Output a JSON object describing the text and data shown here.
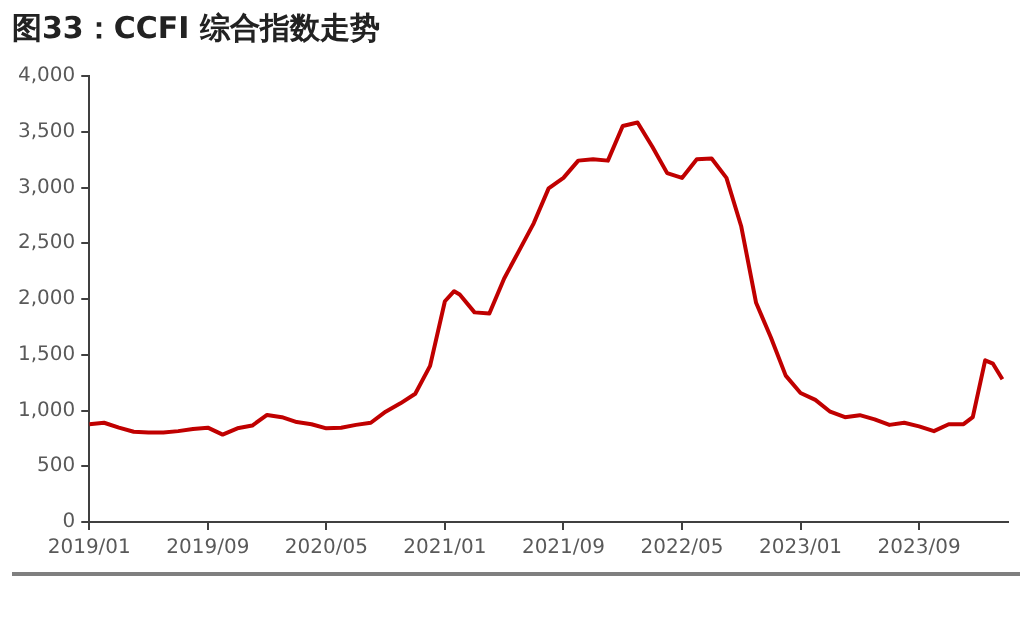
{
  "chart_data": {
    "type": "line",
    "title": "图33：CCFI 综合指数走势",
    "x": [
      "2019-01",
      "2019-02",
      "2019-03",
      "2019-04",
      "2019-05",
      "2019-06",
      "2019-07",
      "2019-08",
      "2019-09",
      "2019-10",
      "2019-11",
      "2019-12",
      "2020-01",
      "2020-02",
      "2020-03",
      "2020-04",
      "2020-05",
      "2020-06",
      "2020-07",
      "2020-08",
      "2020-09",
      "2020-10",
      "2020-11",
      "2020-12",
      "2021-01",
      "2021-01-20",
      "2021-02",
      "2021-03",
      "2021-04",
      "2021-05",
      "2021-06",
      "2021-07",
      "2021-08",
      "2021-09",
      "2021-10",
      "2021-11",
      "2021-12",
      "2022-01",
      "2022-02",
      "2022-03",
      "2022-04",
      "2022-05",
      "2022-06",
      "2022-07",
      "2022-08",
      "2022-09",
      "2022-10",
      "2022-11",
      "2022-12",
      "2023-01",
      "2023-02",
      "2023-03",
      "2023-04",
      "2023-05",
      "2023-06",
      "2023-07",
      "2023-08",
      "2023-09",
      "2023-10",
      "2023-11",
      "2023-12",
      "2023-12-20",
      "2024-01-05",
      "2024-01-15",
      "2024-01-31",
      "2024-02-20"
    ],
    "series": [
      {
        "color": "#c00000",
        "values": [
          877,
          890,
          846,
          809,
          802,
          802,
          815,
          834,
          846,
          784,
          840,
          865,
          960,
          940,
          896,
          877,
          840,
          846,
          871,
          890,
          989,
          1064,
          1150,
          1400,
          1980,
          2070,
          2040,
          1880,
          1870,
          2184,
          2432,
          2681,
          2992,
          3086,
          3241,
          3254,
          3241,
          3552,
          3583,
          3365,
          3129,
          3086,
          3254,
          3260,
          3086,
          2650,
          1966,
          1655,
          1313,
          1157,
          1095,
          989,
          940,
          958,
          921,
          871,
          890,
          858,
          815,
          877,
          877,
          940,
          1250,
          1450,
          1420,
          1280
        ]
      }
    ],
    "xlim": [
      "2019-01",
      "2024-03"
    ],
    "xticks": [
      {
        "value": "2019-01",
        "label": "2019/01"
      },
      {
        "value": "2019-09",
        "label": "2019/09"
      },
      {
        "value": "2020-05",
        "label": "2020/05"
      },
      {
        "value": "2021-01",
        "label": "2021/01"
      },
      {
        "value": "2021-09",
        "label": "2021/09"
      },
      {
        "value": "2022-05",
        "label": "2022/05"
      },
      {
        "value": "2023-01",
        "label": "2023/01"
      },
      {
        "value": "2023-09",
        "label": "2023/09"
      }
    ],
    "ylim": [
      0,
      4000
    ],
    "yticks": [
      0,
      500,
      {
        "value": 1000,
        "label": "1,000"
      },
      {
        "value": 1500,
        "label": "1,500"
      },
      {
        "value": 2000,
        "label": "2,000"
      },
      {
        "value": 2500,
        "label": "2,500"
      },
      {
        "value": 3000,
        "label": "3,000"
      },
      {
        "value": 3500,
        "label": "3,500"
      },
      {
        "value": 4000,
        "label": "4,000"
      }
    ],
    "grid": false,
    "legend": false,
    "marker": "none",
    "line_style": "solid"
  }
}
